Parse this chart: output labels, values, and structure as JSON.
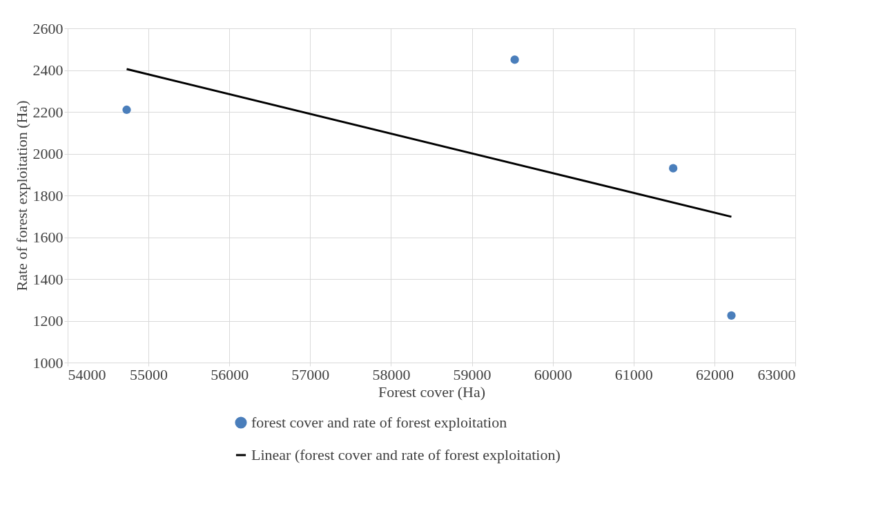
{
  "chart_data": {
    "type": "scatter",
    "xlabel": "Forest cover (Ha)",
    "ylabel": "Rate of forest exploitation (Ha)",
    "xlim": [
      54000,
      63000
    ],
    "xticks": [
      54000,
      55000,
      56000,
      57000,
      58000,
      59000,
      60000,
      61000,
      62000,
      63000
    ],
    "ylim": [
      1000,
      2600
    ],
    "yticks": [
      1000,
      1200,
      1400,
      1600,
      1800,
      2000,
      2200,
      2400,
      2600
    ],
    "grid": true,
    "legend": "bottom",
    "series": [
      {
        "name": "forest cover and rate of forest exploitation",
        "marker": "circle",
        "color": "#4a7ebb",
        "x": [
          54730,
          59530,
          61490,
          62210
        ],
        "values": [
          2210,
          2450,
          1930,
          1225
        ]
      },
      {
        "name": "Linear (forest cover and rate of forest exploitation)",
        "type": "line",
        "marker": "none",
        "color": "#000000",
        "line_style": "solid",
        "x": [
          54730,
          62210
        ],
        "values": [
          2405,
          1698
        ]
      }
    ]
  }
}
